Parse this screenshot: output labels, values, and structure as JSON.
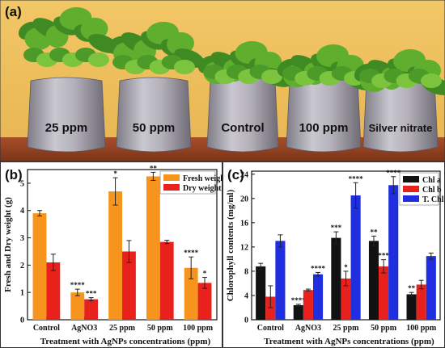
{
  "panel_a": {
    "label": "(a)",
    "pot_labels": [
      "25 ppm",
      "50 ppm",
      "Control",
      "100 ppm",
      "Silver nitrate"
    ]
  },
  "colors": {
    "fresh": "#F7941D",
    "dry": "#E8211C",
    "chl_a": "#111111",
    "chl_b": "#E8211C",
    "t_chl": "#1F2FE0",
    "error": "#222222"
  },
  "chart_data": [
    {
      "panel": "(b)",
      "type": "bar",
      "categories": [
        "Control",
        "AgNO3",
        "25 ppm",
        "50 ppm",
        "100 ppm"
      ],
      "xlabel": "Treatment with AgNPs concentrations (ppm)",
      "ylabel": "Fresh and Dry weight (g)",
      "ylim": [
        0,
        5.5
      ],
      "yticks": [
        0,
        1,
        2,
        3,
        4,
        5
      ],
      "legend_position": "top-right",
      "series": [
        {
          "name": "Fresh weight",
          "values": [
            3.9,
            1.0,
            4.7,
            5.25,
            1.9
          ],
          "errors": [
            0.1,
            0.12,
            0.5,
            0.15,
            0.4
          ],
          "sig": [
            "",
            "****",
            "*",
            "**",
            "****"
          ]
        },
        {
          "name": "Dry weight",
          "values": [
            2.1,
            0.75,
            2.5,
            2.85,
            1.35
          ],
          "errors": [
            0.3,
            0.06,
            0.4,
            0.06,
            0.2
          ],
          "sig": [
            "",
            "***",
            "",
            "",
            "*"
          ]
        }
      ]
    },
    {
      "panel": "(c)",
      "type": "bar",
      "categories": [
        "Control",
        "AgNO3",
        "25 ppm",
        "50 ppm",
        "100 ppm"
      ],
      "xlabel": "Treatment with AgNPs concentrations (ppm)",
      "ylabel": "Chlorophyll contents (mg/ml)",
      "ylim": [
        0,
        24.5
      ],
      "yticks": [
        0,
        4,
        8,
        12,
        16,
        20,
        24
      ],
      "legend_position": "top-right",
      "series": [
        {
          "name": "Chl a",
          "values": [
            8.8,
            2.4,
            13.5,
            13.0,
            4.2
          ],
          "errors": [
            0.5,
            0.15,
            1.0,
            0.8,
            0.3
          ],
          "sig": [
            "",
            "****",
            "***",
            "**",
            "**"
          ]
        },
        {
          "name": "Chl b",
          "values": [
            3.8,
            4.9,
            6.8,
            8.8,
            5.8
          ],
          "errors": [
            1.8,
            0.15,
            1.2,
            1.1,
            0.7
          ],
          "sig": [
            "",
            "",
            "*",
            "***",
            ""
          ]
        },
        {
          "name": "T. Chl",
          "values": [
            13.0,
            7.5,
            20.5,
            22.2,
            10.5
          ],
          "errors": [
            1.0,
            0.3,
            2.1,
            1.4,
            0.5
          ],
          "sig": [
            "",
            "****",
            "****",
            "****",
            ""
          ]
        }
      ]
    }
  ]
}
